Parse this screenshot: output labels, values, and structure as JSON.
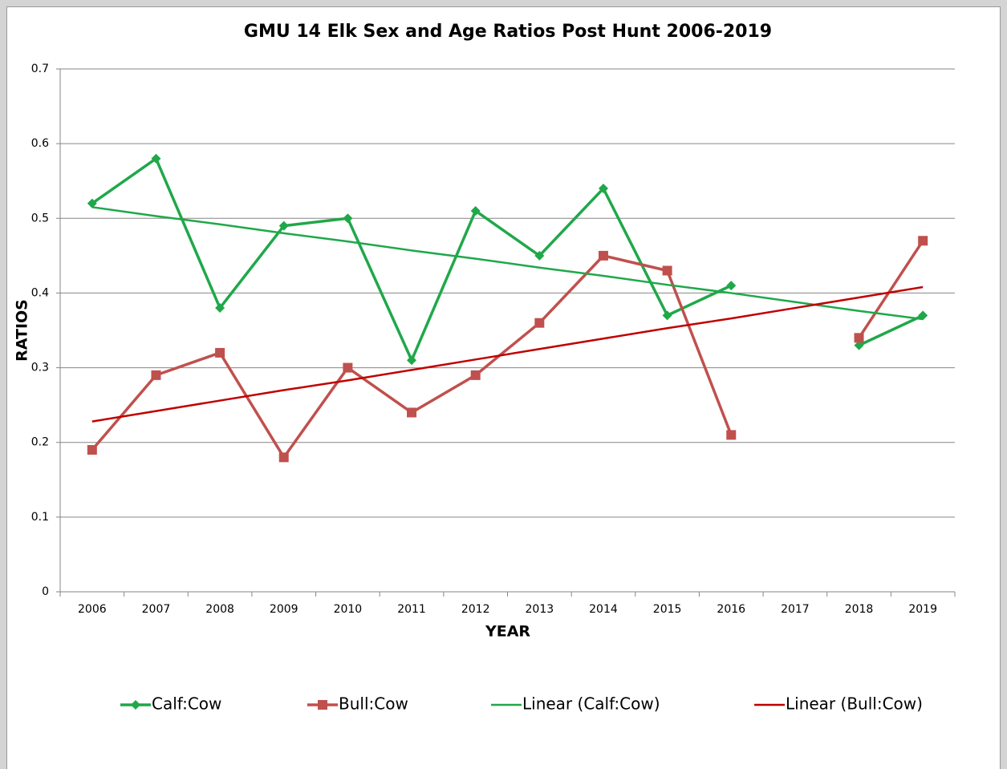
{
  "chart_data": {
    "type": "line",
    "title": "GMU 14 Elk Sex and Age Ratios Post Hunt 2006-2019",
    "x_label": "YEAR",
    "y_label": "RATIOS",
    "categories": [
      "2006",
      "2007",
      "2008",
      "2009",
      "2010",
      "2011",
      "2012",
      "2013",
      "2014",
      "2015",
      "2016",
      "2017",
      "2018",
      "2019"
    ],
    "series": [
      {
        "name": "Calf:Cow",
        "color": "#1fa84a",
        "marker": "diamond",
        "values": [
          0.52,
          0.58,
          0.38,
          0.49,
          0.5,
          0.31,
          0.51,
          0.45,
          0.54,
          0.37,
          0.41,
          null,
          0.33,
          0.37
        ]
      },
      {
        "name": "Bull:Cow",
        "color": "#c0504d",
        "marker": "square",
        "values": [
          0.19,
          0.29,
          0.32,
          0.18,
          0.3,
          0.24,
          0.29,
          0.36,
          0.45,
          0.43,
          0.21,
          null,
          0.34,
          0.47
        ]
      },
      {
        "name": "Linear (Calf:Cow)",
        "color": "#1fa84a",
        "marker": "none",
        "values": [
          0.515,
          0.503,
          0.492,
          0.48,
          0.469,
          0.457,
          0.446,
          0.434,
          0.423,
          0.411,
          0.4,
          0.388,
          0.376,
          0.365
        ]
      },
      {
        "name": "Linear (Bull:Cow)",
        "color": "#c00000",
        "marker": "none",
        "values": [
          0.228,
          0.242,
          0.256,
          0.27,
          0.283,
          0.297,
          0.311,
          0.325,
          0.339,
          0.353,
          0.366,
          0.38,
          0.394,
          0.408
        ]
      }
    ],
    "ylim": [
      0,
      0.7
    ],
    "yticks": [
      0,
      0.1,
      0.2,
      0.3,
      0.4,
      0.5,
      0.6,
      0.7
    ],
    "grid": true,
    "legend": "bottom"
  }
}
